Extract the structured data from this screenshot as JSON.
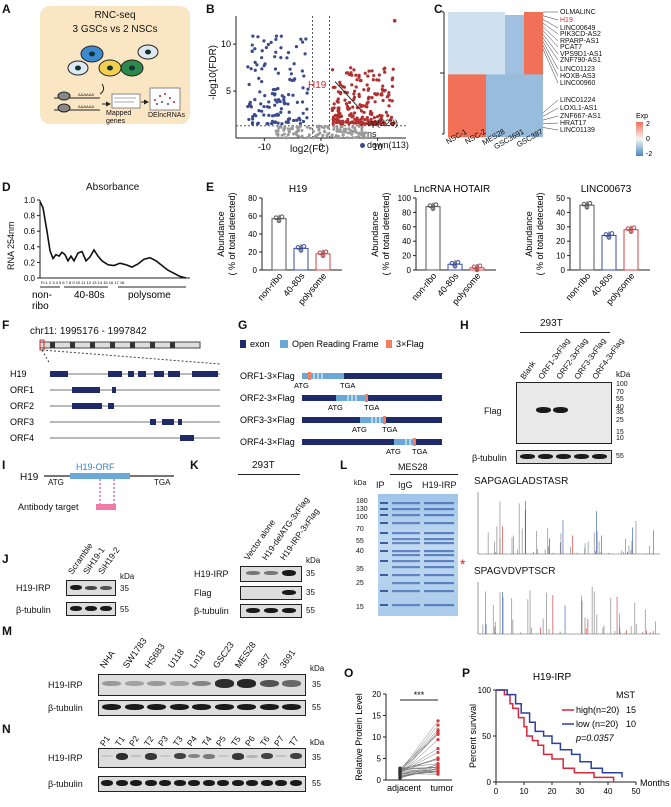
{
  "panels": {
    "A": {
      "label": "A",
      "title": "RNC-seq",
      "subtitle": "3 GSCs vs 2 NSCs",
      "mapped": "Mapped genes",
      "de": "DElncRNAs",
      "aaaaa1": "AAAAAA",
      "aaaaa2": "AAAAAA"
    },
    "B": {
      "label": "B",
      "ylabel": "-log10(FDR)",
      "xlabel": "log2(FC)",
      "highlight": "H19",
      "legend_up": "up(226)",
      "legend_ns": "ns",
      "legend_down": "down(113)",
      "xticks": [
        "-10",
        "0",
        "10"
      ],
      "yticks": [
        "5",
        "10"
      ]
    },
    "C": {
      "label": "C",
      "genes": [
        "OLMALINC",
        "H19",
        "LINC00649",
        "PIK3CD-AS2",
        "RPARP-AS1",
        "PCAT7",
        "VPS9D1-AS1",
        "ZNF790-AS1",
        "LINC01123",
        "HOXB-AS3",
        "LINC00960",
        "LINC01224",
        "LOXL1-AS1",
        "ZNF667-AS1",
        "HRAT17",
        "LINC01139"
      ],
      "samples": [
        "NSC-1",
        "NSC-2",
        "MES28",
        "GSC3691",
        "GSC387"
      ],
      "legend_title": "Exp",
      "legend_ticks": [
        "2",
        "0",
        "-2"
      ]
    },
    "D": {
      "label": "D",
      "title": "Absorbance",
      "ylabel": "RNA 254nm",
      "yticks": [
        "1.0",
        "0.8",
        "0.6",
        "0.4",
        "0.2",
        "0.0"
      ],
      "fractions": "Fr.1 2 3 4 5 6 7 8 9 10 11 12 13 14 15 16 17 18",
      "g1": "non-",
      "g1b": "ribo",
      "g2": "40-80s",
      "g3": "polysome"
    },
    "E": {
      "label": "E",
      "plots": [
        {
          "title": "H19",
          "ylabel1": "Abundance",
          "ylabel2": "( % of total detected)",
          "yticks": [
            "0",
            "20",
            "40",
            "60",
            "80"
          ],
          "ymax": 80,
          "cats": [
            "non-ribo",
            "40-80s",
            "polysome"
          ],
          "values": [
            57,
            24,
            18
          ]
        },
        {
          "title": "LncRNA HOTAIR",
          "ylabel1": "Abundance",
          "ylabel2": "( % of total detected)",
          "yticks": [
            "0",
            "20",
            "40",
            "60",
            "80",
            "100"
          ],
          "ymax": 100,
          "cats": [
            "non-ribo",
            "40-80s",
            "polysome"
          ],
          "values": [
            88,
            8,
            3
          ]
        },
        {
          "title": "LINC00673",
          "ylabel1": "Abundance",
          "ylabel2": "( % of total detected)",
          "yticks": [
            "0",
            "10",
            "20",
            "30",
            "40",
            "50"
          ],
          "ymax": 50,
          "cats": [
            "non-ribo",
            "40-80s",
            "polysome"
          ],
          "values": [
            45,
            24,
            28
          ]
        }
      ]
    },
    "F": {
      "label": "F",
      "chr": "chr11:  1995176 - 1997842",
      "rows": [
        "H19",
        "ORF1",
        "ORF2",
        "ORF3",
        "ORF4"
      ]
    },
    "G": {
      "label": "G",
      "legend_exon": "exon",
      "legend_orf": "Open Reading Frame",
      "legend_flag": "3×Flag",
      "rows": [
        "ORF1-3×Flag",
        "ORF2-3×Flag",
        "ORF3-3×Flag",
        "ORF4-3×Flag"
      ],
      "atg": "ATG",
      "tga": "TGA"
    },
    "H": {
      "label": "H",
      "cell": "293T",
      "lanes": [
        "Blank",
        "ORF1-3xFlag",
        "ORF2-3xFlag",
        "ORF3-3xFlag",
        "ORF4-3xFlag"
      ],
      "kda": "kDa",
      "markers": [
        "100",
        "70",
        "55",
        "40",
        "35",
        "25",
        "15",
        "10"
      ],
      "row1": "Flag",
      "row2": "β-tubulin",
      "tub_marker": "55"
    },
    "I": {
      "label": "I",
      "gene": "H19",
      "orf": "H19-ORF",
      "atg": "ATG",
      "tga": "TGA",
      "antibody": "Antibody target"
    },
    "J": {
      "label": "J",
      "lanes": [
        "Scramble",
        "SiH19-1",
        "SiH19-2"
      ],
      "kda": "kDa",
      "row1": "H19-IRP",
      "row2": "β-tubulin",
      "m1": "35",
      "m2": "55"
    },
    "K": {
      "label": "K",
      "cell": "293T",
      "lanes": [
        "Vector alone",
        "H19-delATG-3xFlag",
        "H19-IRP-3xFlag"
      ],
      "kda": "kDa",
      "row1": "H19-IRP",
      "row2": "Flag",
      "row3": "β-tubulin",
      "m1": "35",
      "m2": "35",
      "m3": "55"
    },
    "L": {
      "label": "L",
      "cell": "MES28",
      "ip": "IP",
      "ctrl": "IgG",
      "exp": "H19-IRP",
      "markers": [
        "kDa",
        "180",
        "130",
        "100",
        "70",
        "55",
        "40",
        "35",
        "25",
        "15"
      ],
      "pep1": "SAPGAGLADSTASR",
      "pep2": "SPAGVDVPTSCR",
      "star": "*"
    },
    "M": {
      "label": "M",
      "lanes": [
        "NHA",
        "SW1783",
        "HS683",
        "U118",
        "Ln18",
        "GSC23",
        "MES28",
        "387",
        "3691"
      ],
      "kda": "kDa",
      "row1": "H19-IRP",
      "row2": "β-tubulin",
      "m1": "35",
      "m2": "55"
    },
    "N": {
      "label": "N",
      "lanes": [
        "P1",
        "T1",
        "P2",
        "T2",
        "P3",
        "T3",
        "P4",
        "T4",
        "P5",
        "T5",
        "P6",
        "T6",
        "P7",
        "T7"
      ],
      "kda": "kDa",
      "row1": "H19-IRP",
      "row2": "β-tubulin",
      "m1": "35",
      "m2": "55"
    },
    "O": {
      "label": "O",
      "ylabel1": "Relative Protein Level",
      "yticks": [
        "0",
        "5",
        "10",
        "15",
        "20"
      ],
      "xcats": [
        "adjacent",
        "tumor"
      ],
      "sig": "***"
    },
    "P": {
      "label": "P",
      "title": "H19-IRP",
      "ylabel": "Percent survival",
      "xlabel": "Months",
      "yticks": [
        "0",
        "50",
        "100"
      ],
      "xticks": [
        "0",
        "10",
        "20",
        "30",
        "40",
        "50"
      ],
      "mst": "MST",
      "high": "high(n=20)",
      "high_v": "15",
      "low": "low (n=20)",
      "low_v": "10",
      "pval": "p=0.0357"
    }
  },
  "colors": {
    "up": "#b03030",
    "down": "#3a4a8a",
    "ns": "#999999",
    "heat_hi": "#f07058",
    "heat_lo": "#4a86c0",
    "heat_mid": "#cfe0ef",
    "orf": "#6aa8d8",
    "exon": "#1f2a6b",
    "flag": "#f08060",
    "high": "#d8283a",
    "low": "#2840a0"
  },
  "chart_data": [
    {
      "type": "bar",
      "title": "H19",
      "categories": [
        "non-ribo",
        "40-80s",
        "polysome"
      ],
      "values": [
        57,
        24,
        18
      ],
      "ylabel": "Abundance ( % of total detected)",
      "ylim": [
        0,
        80
      ]
    },
    {
      "type": "bar",
      "title": "LncRNA HOTAIR",
      "categories": [
        "non-ribo",
        "40-80s",
        "polysome"
      ],
      "values": [
        88,
        8,
        3
      ],
      "ylabel": "Abundance ( % of total detected)",
      "ylim": [
        0,
        100
      ]
    },
    {
      "type": "bar",
      "title": "LINC00673",
      "categories": [
        "non-ribo",
        "40-80s",
        "polysome"
      ],
      "values": [
        45,
        24,
        28
      ],
      "ylabel": "Abundance ( % of total detected)",
      "ylim": [
        0,
        50
      ]
    }
  ]
}
